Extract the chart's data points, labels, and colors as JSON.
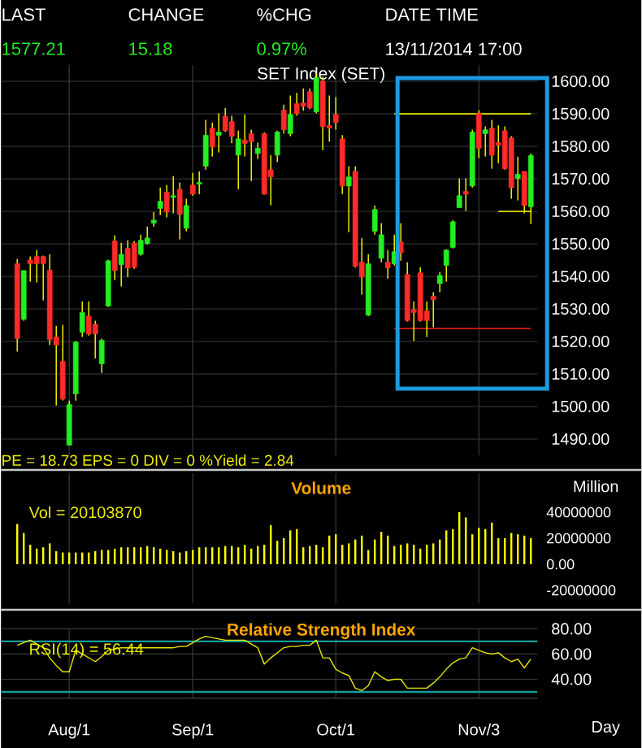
{
  "chart_data": [
    {
      "type": "candlestick",
      "title": "SET Index (SET)",
      "annotations": [
        "LAST",
        "CHANGE",
        "%CHG",
        "DATE TIME",
        "1577.21",
        "15.18",
        "0.97%",
        "13/11/2014 17:00",
        "PE = 18.73 EPS = 0 DIV = 0 %Yield = 2.84"
      ],
      "categories": [
        null,
        null,
        null,
        null,
        null,
        null,
        null,
        null,
        null,
        null,
        null,
        null,
        null,
        null,
        null,
        null,
        null,
        null,
        null,
        null,
        null,
        null,
        null,
        null,
        null,
        null,
        null,
        null,
        null,
        null,
        null,
        null,
        null,
        null,
        null,
        null,
        null,
        null,
        null,
        null,
        null,
        null,
        null,
        null,
        null,
        null,
        null,
        null,
        null,
        null,
        null,
        null,
        null,
        null,
        null,
        null,
        null,
        null,
        null,
        null,
        null,
        null,
        null,
        null,
        null,
        null,
        null,
        null,
        null,
        null,
        null,
        null,
        null,
        null,
        null,
        null,
        null,
        null,
        null,
        null
      ],
      "ohlc": [
        [
          1543.9,
          1545.4,
          1516.9,
          1520.9
        ],
        [
          1526.8,
          1541.8,
          1526.4,
          1541.8
        ],
        [
          1545.1,
          1546.1,
          1538.4,
          1543.9
        ],
        [
          1546.1,
          1548.1,
          1538.1,
          1543.9
        ],
        [
          1546.1,
          1546.4,
          1532.6,
          1543.9
        ],
        [
          1541.9,
          1546.8,
          1518.9,
          1520.6
        ],
        [
          1521.4,
          1524.8,
          1500.3,
          1518.9
        ],
        [
          1513.9,
          1525.1,
          1501.9,
          1502.3
        ],
        [
          1488.1,
          1501.8,
          1488.0,
          1500.6
        ],
        [
          1503.9,
          1520.1,
          1501.8,
          1519.8
        ],
        [
          1522.8,
          1532.3,
          1521.4,
          1528.9
        ],
        [
          1527.8,
          1532.3,
          1521.8,
          1522.3
        ],
        [
          1525.3,
          1526.4,
          1514.8,
          1522.3
        ],
        [
          1513.1,
          1520.9,
          1510.3,
          1520.4
        ],
        [
          1530.9,
          1545.1,
          1530.6,
          1544.8
        ],
        [
          1550.9,
          1552.6,
          1538.9,
          1541.8
        ],
        [
          1543.6,
          1550.3,
          1536.9,
          1546.8
        ],
        [
          1548.6,
          1551.1,
          1539.8,
          1542.6
        ],
        [
          1550.3,
          1550.9,
          1542.3,
          1542.8
        ],
        [
          1546.8,
          1552.8,
          1546.4,
          1551.1
        ],
        [
          1550.1,
          1555.3,
          1549.8,
          1551.8
        ],
        [
          1556.4,
          1559.8,
          1555.3,
          1557.3
        ],
        [
          1560.9,
          1567.3,
          1558.9,
          1563.1
        ],
        [
          1565.9,
          1568.1,
          1558.1,
          1559.8
        ],
        [
          1564.3,
          1570.9,
          1559.4,
          1564.8
        ],
        [
          1566.8,
          1568.9,
          1551.4,
          1559.1
        ],
        [
          1554.8,
          1563.9,
          1553.9,
          1561.8
        ],
        [
          1568.1,
          1571.8,
          1564.8,
          1565.3
        ],
        [
          1568.4,
          1572.3,
          1565.3,
          1568.9
        ],
        [
          1573.9,
          1588.1,
          1572.8,
          1583.4
        ],
        [
          1585.6,
          1587.3,
          1576.9,
          1579.8
        ],
        [
          1583.4,
          1590.1,
          1578.1,
          1584.4
        ],
        [
          1589.3,
          1591.8,
          1584.4,
          1584.8
        ],
        [
          1587.6,
          1589.4,
          1580.9,
          1583.1
        ],
        [
          1577.3,
          1584.8,
          1566.8,
          1582.3
        ],
        [
          1581.9,
          1589.8,
          1576.9,
          1580.9
        ],
        [
          1583.9,
          1585.1,
          1569.3,
          1581.4
        ],
        [
          1577.8,
          1581.1,
          1576.1,
          1579.4
        ],
        [
          1583.9,
          1584.3,
          1565.1,
          1565.3
        ],
        [
          1572.8,
          1577.3,
          1561.9,
          1570.6
        ],
        [
          1577.3,
          1584.8,
          1575.1,
          1584.4
        ],
        [
          1591.1,
          1592.8,
          1583.9,
          1585.1
        ],
        [
          1583.9,
          1595.6,
          1583.1,
          1589.8
        ],
        [
          1593.1,
          1596.4,
          1589.4,
          1590.1
        ],
        [
          1593.4,
          1597.8,
          1590.9,
          1592.3
        ],
        [
          1596.8,
          1597.8,
          1591.4,
          1591.8
        ],
        [
          1590.6,
          1602.3,
          1590.1,
          1601.1
        ],
        [
          1600.1,
          1601.4,
          1578.9,
          1586.1
        ],
        [
          1586.4,
          1595.6,
          1581.4,
          1585.6
        ],
        [
          1589.8,
          1595.1,
          1585.1,
          1587.3
        ],
        [
          1582.3,
          1583.4,
          1565.3,
          1567.8
        ],
        [
          1567.8,
          1573.9,
          1553.6,
          1570.6
        ],
        [
          1572.3,
          1573.9,
          1542.8,
          1543.1
        ],
        [
          1544.4,
          1551.8,
          1534.4,
          1539.8
        ],
        [
          1528.1,
          1546.8,
          1527.8,
          1543.9
        ],
        [
          1553.9,
          1561.8,
          1552.8,
          1560.6
        ],
        [
          1545.6,
          1556.4,
          1544.4,
          1552.8
        ],
        [
          1544.4,
          1548.1,
          1539.3,
          1542.6
        ],
        [
          1543.9,
          1552.8,
          1543.4,
          1547.6
        ],
        [
          1550.6,
          1556.4,
          1544.8,
          1547.3
        ],
        [
          1540.6,
          1544.4,
          1526.1,
          1526.4
        ],
        [
          1529.8,
          1532.3,
          1520.1,
          1528.9
        ],
        [
          1541.1,
          1542.8,
          1526.1,
          1526.4
        ],
        [
          1529.4,
          1532.3,
          1521.4,
          1526.4
        ],
        [
          1533.9,
          1535.1,
          1524.4,
          1532.8
        ],
        [
          1537.8,
          1541.4,
          1535.1,
          1540.3
        ],
        [
          1543.4,
          1548.4,
          1538.4,
          1548.1
        ],
        [
          1548.9,
          1557.3,
          1548.6,
          1556.8
        ],
        [
          1561.1,
          1570.1,
          1561.1,
          1564.8
        ],
        [
          1566.1,
          1570.1,
          1560.1,
          1565.3
        ],
        [
          1567.8,
          1585.1,
          1567.3,
          1584.4
        ],
        [
          1590.1,
          1591.1,
          1576.4,
          1579.4
        ],
        [
          1583.9,
          1586.1,
          1576.9,
          1585.1
        ],
        [
          1585.6,
          1588.1,
          1573.1,
          1577.3
        ],
        [
          1581.1,
          1586.4,
          1574.8,
          1580.4
        ],
        [
          1584.8,
          1586.1,
          1572.8,
          1573.1
        ],
        [
          1582.6,
          1583.1,
          1563.9,
          1567.3
        ],
        [
          1570.1,
          1576.8,
          1563.4,
          1571.4
        ],
        [
          1572.3,
          1572.3,
          1559.4,
          1561.8
        ],
        [
          1561.4,
          1577.8,
          1556.1,
          1577.2
        ]
      ],
      "series": [
        {
          "type": "line",
          "color": "#ffff00",
          "values": [
            null,
            null,
            null,
            null,
            null,
            null,
            null,
            null,
            null,
            null,
            null,
            null,
            null,
            null,
            null,
            null,
            null,
            null,
            null,
            null,
            null,
            null,
            null,
            null,
            null,
            null,
            null,
            null,
            null,
            null,
            null,
            null,
            null,
            null,
            null,
            null,
            null,
            null,
            null,
            null,
            null,
            null,
            null,
            null,
            null,
            null,
            null,
            null,
            null,
            null,
            null,
            null,
            null,
            null,
            null,
            null,
            null,
            null,
            1590,
            1590,
            1590,
            1590,
            1590,
            1590,
            1590,
            1590,
            1590,
            1590,
            1590,
            1590,
            1590,
            1590,
            1590,
            1590,
            1590,
            1590,
            1590,
            1590,
            1590,
            1590
          ]
        },
        {
          "type": "line",
          "color": "#ffff00",
          "values": [
            null,
            null,
            null,
            null,
            null,
            null,
            null,
            null,
            null,
            null,
            null,
            null,
            null,
            null,
            null,
            null,
            null,
            null,
            null,
            null,
            null,
            null,
            null,
            null,
            null,
            null,
            null,
            null,
            null,
            null,
            null,
            null,
            null,
            null,
            null,
            null,
            null,
            null,
            null,
            null,
            null,
            null,
            null,
            null,
            null,
            null,
            null,
            null,
            null,
            null,
            null,
            null,
            null,
            null,
            null,
            null,
            null,
            null,
            null,
            null,
            null,
            null,
            null,
            null,
            null,
            null,
            null,
            null,
            null,
            null,
            null,
            null,
            null,
            null,
            1560,
            1560,
            1560,
            1560,
            1560,
            1560
          ]
        },
        {
          "type": "line",
          "color": "#ff2020",
          "values": [
            null,
            null,
            null,
            null,
            null,
            null,
            null,
            null,
            null,
            null,
            null,
            null,
            null,
            null,
            null,
            null,
            null,
            null,
            null,
            null,
            null,
            null,
            null,
            null,
            null,
            null,
            null,
            null,
            null,
            null,
            null,
            null,
            null,
            null,
            null,
            null,
            null,
            null,
            null,
            null,
            null,
            null,
            null,
            null,
            null,
            null,
            null,
            null,
            null,
            null,
            null,
            null,
            null,
            null,
            null,
            null,
            null,
            null,
            1524,
            1524,
            1524,
            1524,
            1524,
            1524,
            1524,
            1524,
            1524,
            1524,
            1524,
            1524,
            1524,
            1524,
            1524,
            1524,
            1524,
            1524,
            1524,
            1524,
            1524,
            1524
          ]
        }
      ],
      "ylim": [
        1485,
        1605
      ],
      "yticks": [
        {
          "value": 1490,
          "label": "1490.00"
        },
        {
          "value": 1500,
          "label": "1500.00"
        },
        {
          "value": 1510,
          "label": "1510.00"
        },
        {
          "value": 1520,
          "label": "1520.00"
        },
        {
          "value": 1530,
          "label": "1530.00"
        },
        {
          "value": 1540,
          "label": "1540.00"
        },
        {
          "value": 1550,
          "label": "1550.00"
        },
        {
          "value": 1560,
          "label": "1560.00"
        },
        {
          "value": 1570,
          "label": "1570.00"
        },
        {
          "value": 1580,
          "label": "1580.00"
        },
        {
          "value": 1590,
          "label": "1590.00"
        },
        {
          "value": 1600,
          "label": "1600.00"
        }
      ],
      "grid": true,
      "tick_labels": "y"
    },
    {
      "type": "bar",
      "title": "Volume",
      "ylabel": "Million",
      "annotations": [
        "Vol = 20103870"
      ],
      "categories": [
        null,
        null,
        null,
        null,
        null,
        null,
        null,
        null,
        null,
        null,
        null,
        null,
        null,
        null,
        null,
        null,
        null,
        null,
        null,
        null,
        null,
        null,
        null,
        null,
        null,
        null,
        null,
        null,
        null,
        null,
        null,
        null,
        null,
        null,
        null,
        null,
        null,
        null,
        null,
        null,
        null,
        null,
        null,
        null,
        null,
        null,
        null,
        null,
        null,
        null,
        null,
        null,
        null,
        null,
        null,
        null,
        null,
        null,
        null,
        null,
        null,
        null,
        null,
        null,
        null,
        null,
        null,
        null,
        null,
        null,
        null,
        null,
        null,
        null,
        null,
        null,
        null,
        null,
        null,
        null
      ],
      "values": [
        31000000,
        24000000,
        15000000,
        12000000,
        13000000,
        16000000,
        10000000,
        9000000,
        9000000,
        9000000,
        9000000,
        9000000,
        10000000,
        11000000,
        11000000,
        12000000,
        13000000,
        13000000,
        13000000,
        13000000,
        14000000,
        13000000,
        12000000,
        11000000,
        10000000,
        9000000,
        10000000,
        11000000,
        13000000,
        13000000,
        13000000,
        13000000,
        14000000,
        14000000,
        13000000,
        15000000,
        12000000,
        14000000,
        15000000,
        30000000,
        18000000,
        20000000,
        26000000,
        27000000,
        13000000,
        14000000,
        15000000,
        13000000,
        22000000,
        23000000,
        15000000,
        16000000,
        19000000,
        22000000,
        11000000,
        19000000,
        25000000,
        22000000,
        14000000,
        15000000,
        16000000,
        15000000,
        12000000,
        15000000,
        16000000,
        19000000,
        26000000,
        27000000,
        40000000,
        36000000,
        23000000,
        28000000,
        27000000,
        32000000,
        20000000,
        20000000,
        24000000,
        23000000,
        22000000,
        20000000
      ],
      "color": "#ffff00",
      "ylim": [
        -30000000,
        70000000
      ],
      "yticks": [
        {
          "value": -20000000,
          "label": "-20000000"
        },
        {
          "value": 0,
          "label": "0.00"
        },
        20000000,
        40000000
      ],
      "grid": "x",
      "tick_labels": "y"
    },
    {
      "type": "line",
      "title": "Relative Strength Index",
      "xlabel": "Day",
      "annotations": [
        "RSI(14) = 56.44"
      ],
      "categories": [
        null,
        null,
        null,
        null,
        null,
        null,
        null,
        null,
        "Aug/1",
        null,
        null,
        null,
        null,
        null,
        null,
        null,
        null,
        null,
        null,
        null,
        null,
        null,
        null,
        null,
        null,
        null,
        null,
        "Sep/1",
        null,
        null,
        null,
        null,
        null,
        null,
        null,
        null,
        null,
        null,
        null,
        null,
        null,
        null,
        null,
        null,
        null,
        null,
        null,
        null,
        null,
        "Oct/1",
        null,
        null,
        null,
        null,
        null,
        null,
        null,
        null,
        null,
        null,
        null,
        null,
        null,
        null,
        null,
        null,
        null,
        null,
        null,
        null,
        null,
        "Nov/3",
        null,
        null,
        null,
        null,
        null,
        null,
        null,
        null
      ],
      "values": [
        67,
        69,
        71,
        68,
        65,
        57,
        51,
        46,
        46,
        63,
        60,
        57,
        54,
        58,
        63,
        64,
        65,
        65,
        65,
        65,
        65,
        65,
        65,
        65,
        65,
        66,
        66,
        69,
        72,
        74,
        73,
        72,
        71,
        71,
        71,
        71,
        68,
        65,
        52,
        57,
        61,
        65,
        66,
        66,
        67,
        67,
        71,
        57,
        57,
        48,
        45,
        43,
        33,
        31,
        35,
        46,
        42,
        39,
        40,
        40,
        33,
        33,
        33,
        33,
        37,
        42,
        48,
        53,
        56,
        57,
        65,
        63,
        61,
        60,
        61,
        57,
        54,
        56,
        49,
        56
      ],
      "color": "#e6e600",
      "ref_lines": [
        {
          "axis": "y",
          "value": 70,
          "color": "#159c9c"
        },
        {
          "axis": "y",
          "value": 30,
          "color": "#159c9c"
        }
      ],
      "ylim": [
        25,
        80
      ],
      "yticks": [
        {
          "value": 40,
          "label": "40.00"
        },
        {
          "value": 60,
          "label": "60.00"
        },
        {
          "value": 80,
          "label": "80.00"
        }
      ],
      "grid": true
    }
  ]
}
